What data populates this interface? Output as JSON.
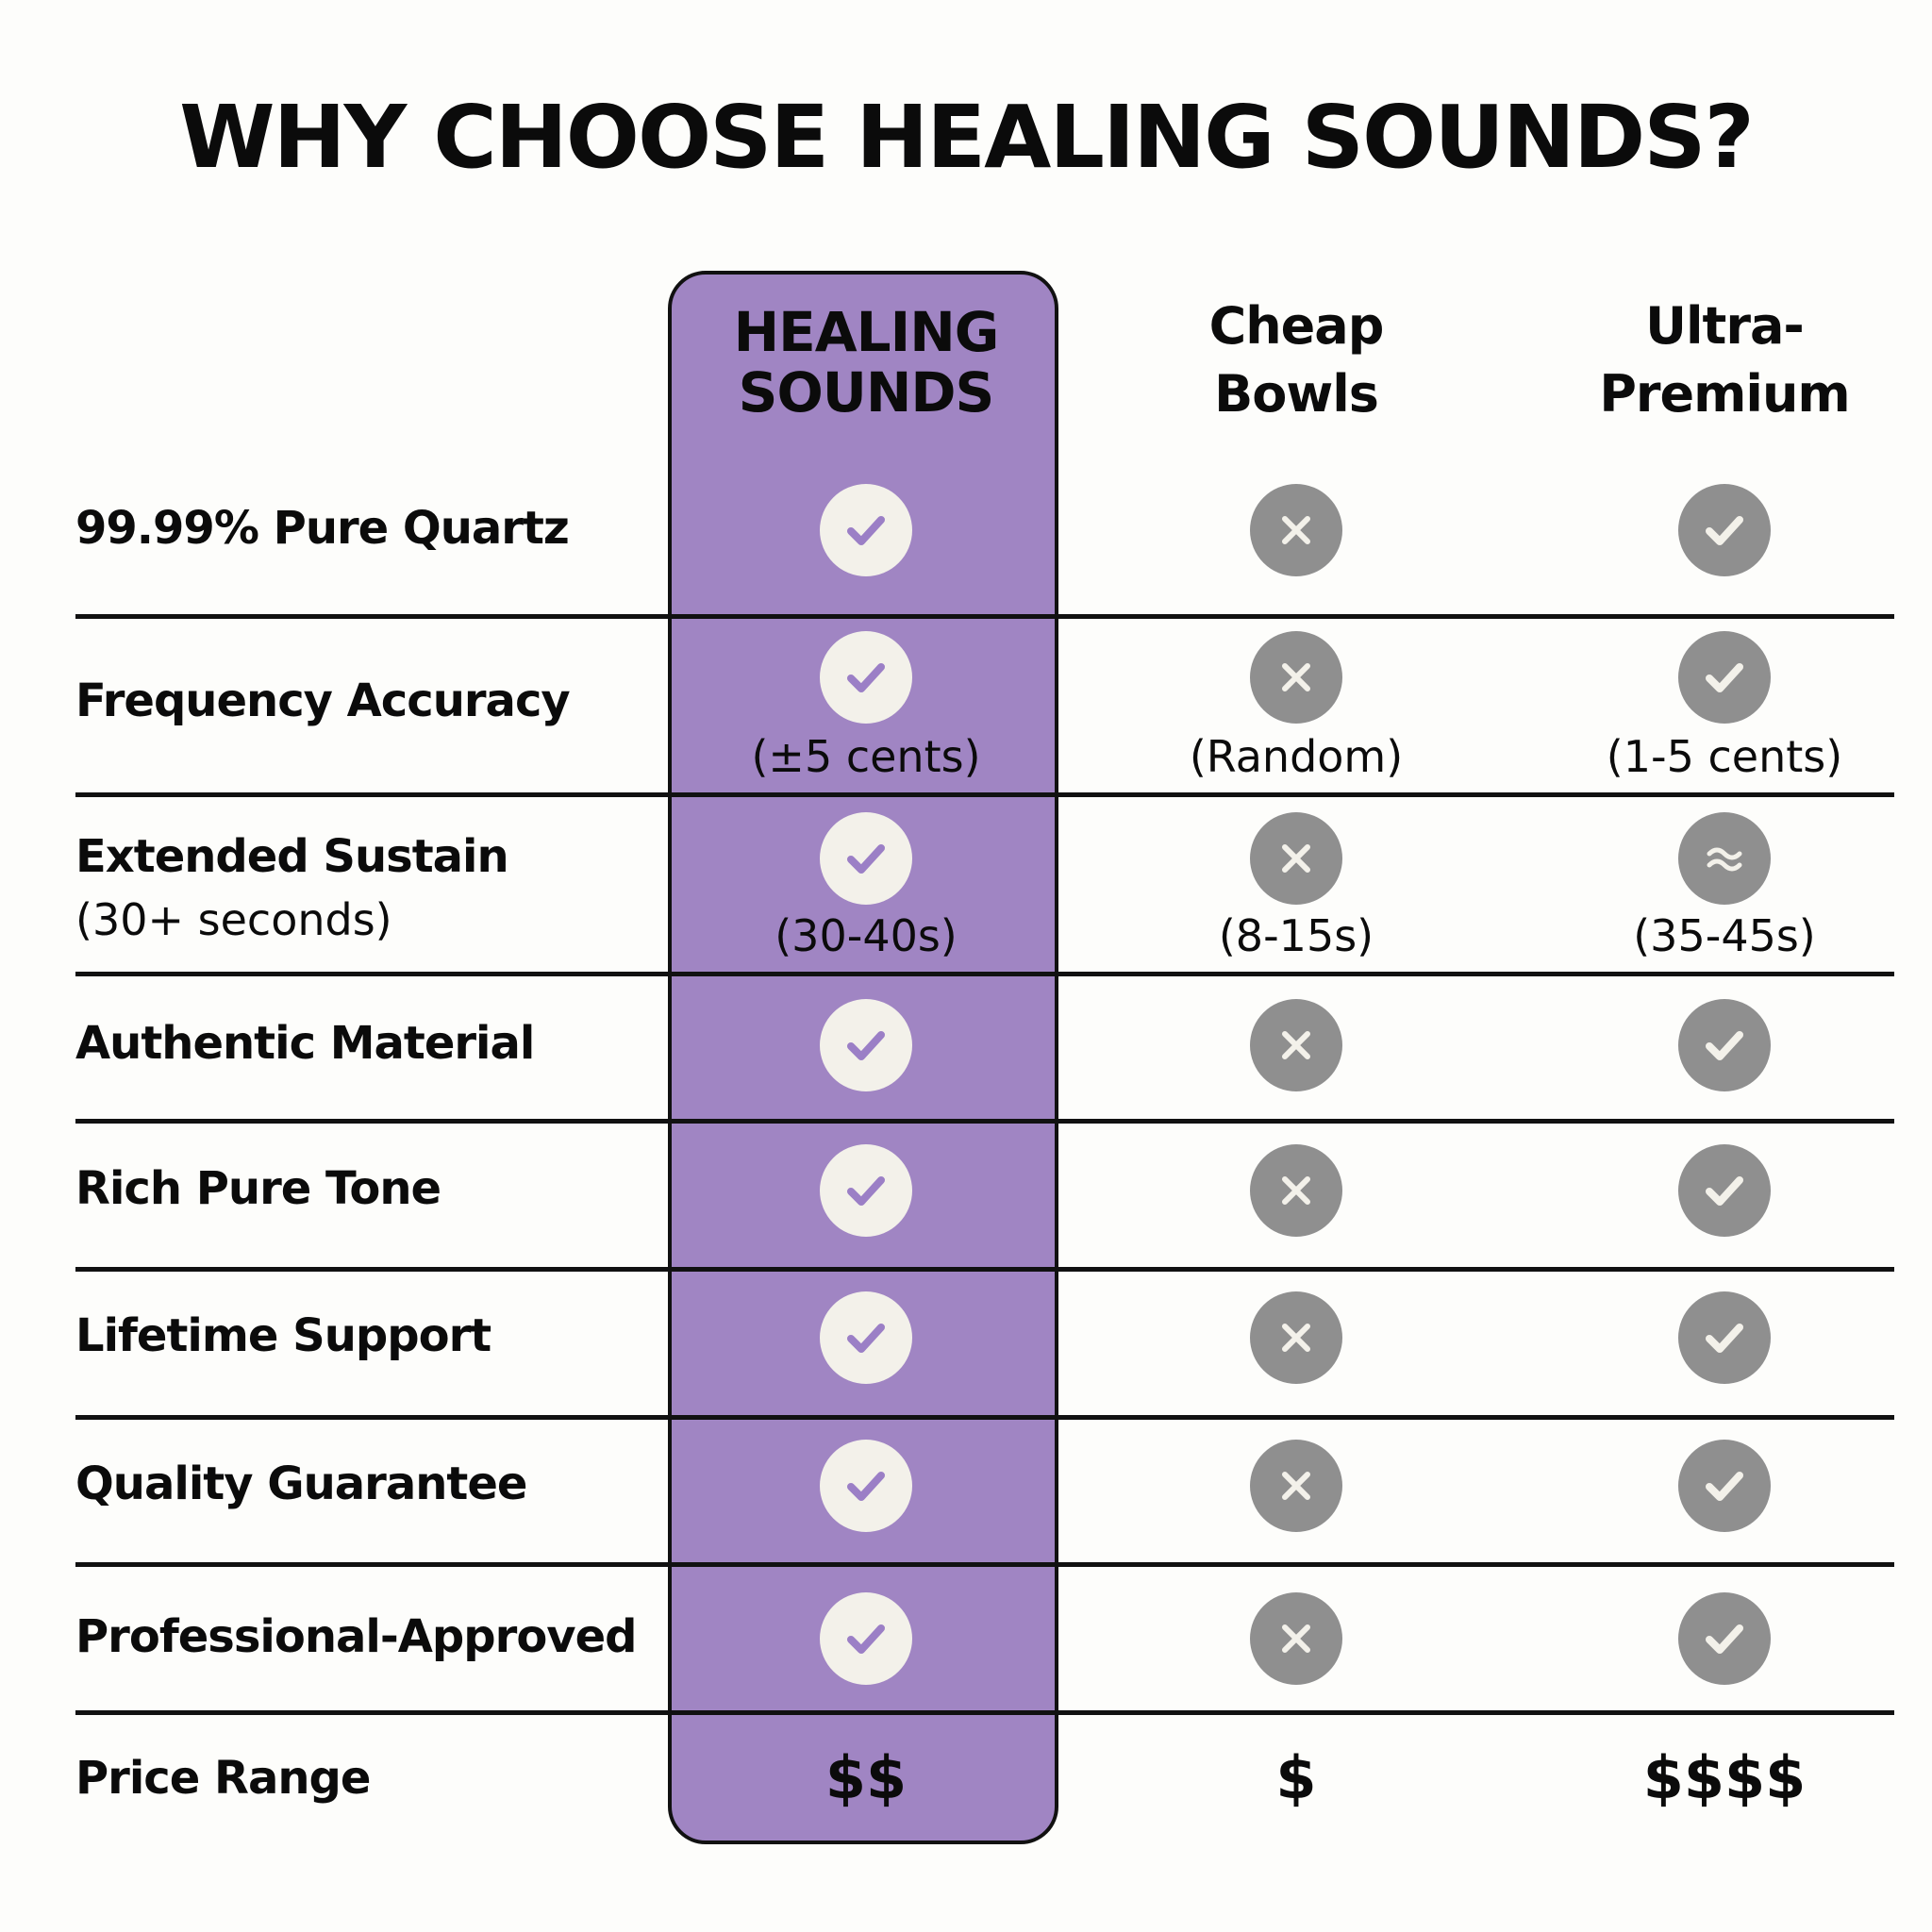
{
  "title": "WHY CHOOSE HEALING SOUNDS?",
  "colors": {
    "accent_purple": "#a085c3",
    "check_purple": "#9b7fc6",
    "neutral_gray": "#8f8f8f",
    "icon_light": "#f3f1ea"
  },
  "columns": [
    {
      "line1": "HEALING",
      "line2": "SOUNDS",
      "highlighted": true
    },
    {
      "line1": "Cheap",
      "line2": "Bowls",
      "highlighted": false
    },
    {
      "line1": "Ultra-",
      "line2": "Premium",
      "highlighted": false
    }
  ],
  "rows": [
    {
      "label": "99.99% Pure Quartz",
      "sublabel": "",
      "cells": [
        {
          "icon": "check",
          "note": ""
        },
        {
          "icon": "cross",
          "note": ""
        },
        {
          "icon": "check",
          "note": ""
        }
      ]
    },
    {
      "label": "Frequency Accuracy",
      "sublabel": "",
      "cells": [
        {
          "icon": "check",
          "note": "(±5 cents)"
        },
        {
          "icon": "cross",
          "note": "(Random)"
        },
        {
          "icon": "check",
          "note": "(1-5 cents)"
        }
      ]
    },
    {
      "label": "Extended Sustain",
      "sublabel": "(30+ seconds)",
      "cells": [
        {
          "icon": "check",
          "note": "(30-40s)"
        },
        {
          "icon": "cross",
          "note": "(8-15s)"
        },
        {
          "icon": "approx",
          "note": "(35-45s)"
        }
      ]
    },
    {
      "label": "Authentic Material",
      "sublabel": "",
      "cells": [
        {
          "icon": "check",
          "note": ""
        },
        {
          "icon": "cross",
          "note": ""
        },
        {
          "icon": "check",
          "note": ""
        }
      ]
    },
    {
      "label": "Rich Pure Tone",
      "sublabel": "",
      "cells": [
        {
          "icon": "check",
          "note": ""
        },
        {
          "icon": "cross",
          "note": ""
        },
        {
          "icon": "check",
          "note": ""
        }
      ]
    },
    {
      "label": "Lifetime Support",
      "sublabel": "",
      "cells": [
        {
          "icon": "check",
          "note": ""
        },
        {
          "icon": "cross",
          "note": ""
        },
        {
          "icon": "check",
          "note": ""
        }
      ]
    },
    {
      "label": "Quality Guarantee",
      "sublabel": "",
      "cells": [
        {
          "icon": "check",
          "note": ""
        },
        {
          "icon": "cross",
          "note": ""
        },
        {
          "icon": "check",
          "note": ""
        }
      ]
    },
    {
      "label": "Professional-Approved",
      "sublabel": "",
      "cells": [
        {
          "icon": "check",
          "note": ""
        },
        {
          "icon": "cross",
          "note": ""
        },
        {
          "icon": "check",
          "note": ""
        }
      ]
    }
  ],
  "price_row": {
    "label": "Price Range",
    "values": [
      "$$",
      "$",
      "$$$$"
    ]
  }
}
